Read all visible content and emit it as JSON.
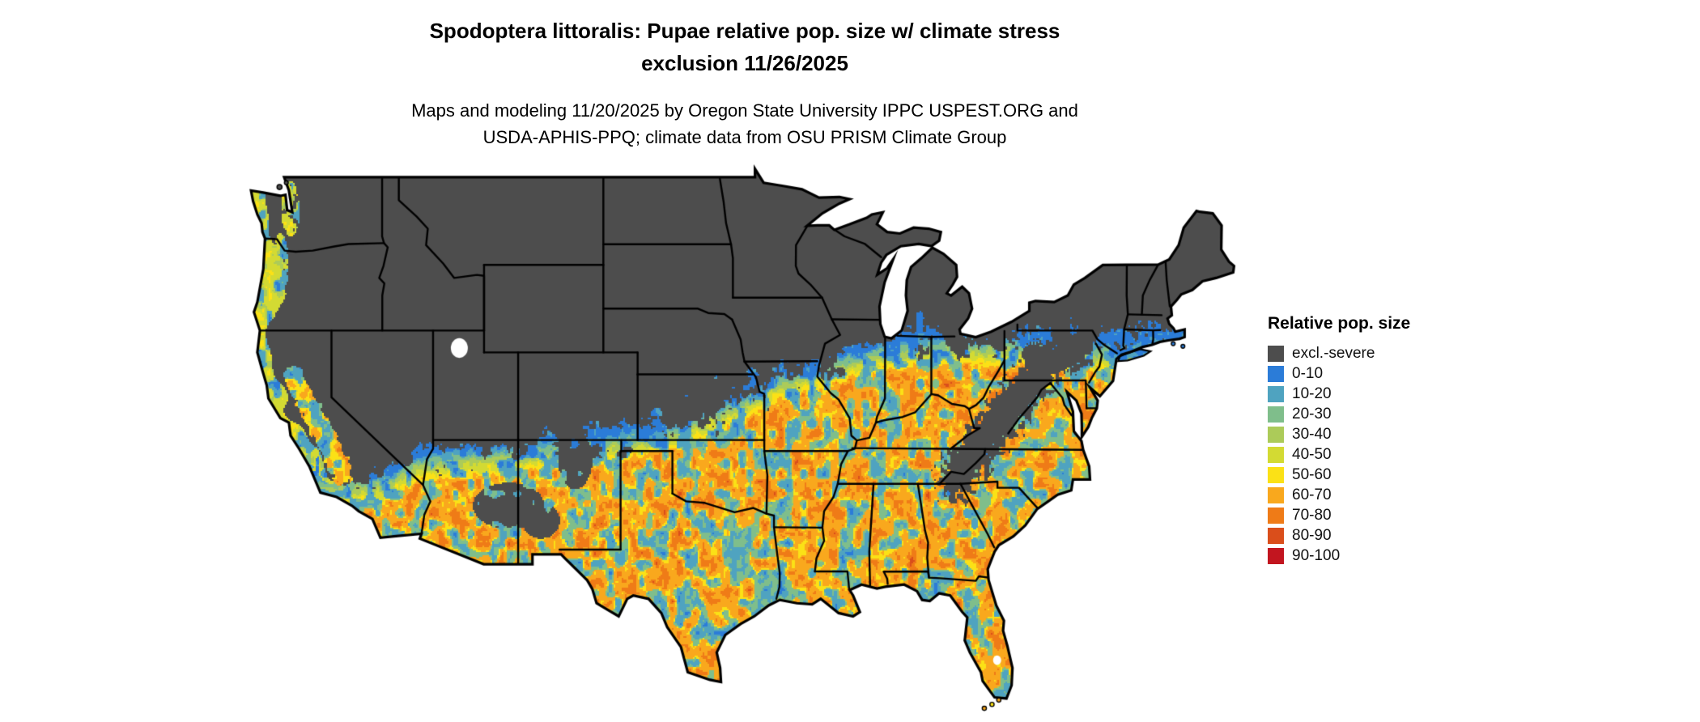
{
  "title": {
    "line1": "Spodoptera littoralis: Pupae relative pop. size w/ climate stress",
    "line2": "exclusion 11/26/2025"
  },
  "subtitle": {
    "line1": "Maps and modeling 11/20/2025 by Oregon State University IPPC USPEST.ORG and",
    "line2": "USDA-APHIS-PPQ; climate data from OSU PRISM Climate Group"
  },
  "map": {
    "region": "Continental United States",
    "excluded_color": "#4D4D4D",
    "border_color": "#000000",
    "water_color": "#FFFFFF"
  },
  "legend": {
    "title": "Relative pop. size",
    "items": [
      {
        "label": "excl.-severe",
        "color": "#4D4D4D"
      },
      {
        "label": "0-10",
        "color": "#2B7CD8"
      },
      {
        "label": "10-20",
        "color": "#4FA3C0"
      },
      {
        "label": "20-30",
        "color": "#7FBE8B"
      },
      {
        "label": "30-40",
        "color": "#ACCB59"
      },
      {
        "label": "40-50",
        "color": "#D3DA33"
      },
      {
        "label": "50-60",
        "color": "#FBE116"
      },
      {
        "label": "60-70",
        "color": "#F9A81D"
      },
      {
        "label": "70-80",
        "color": "#EF7B17"
      },
      {
        "label": "80-90",
        "color": "#DA4E1B"
      },
      {
        "label": "90-100",
        "color": "#C2151F"
      }
    ]
  }
}
